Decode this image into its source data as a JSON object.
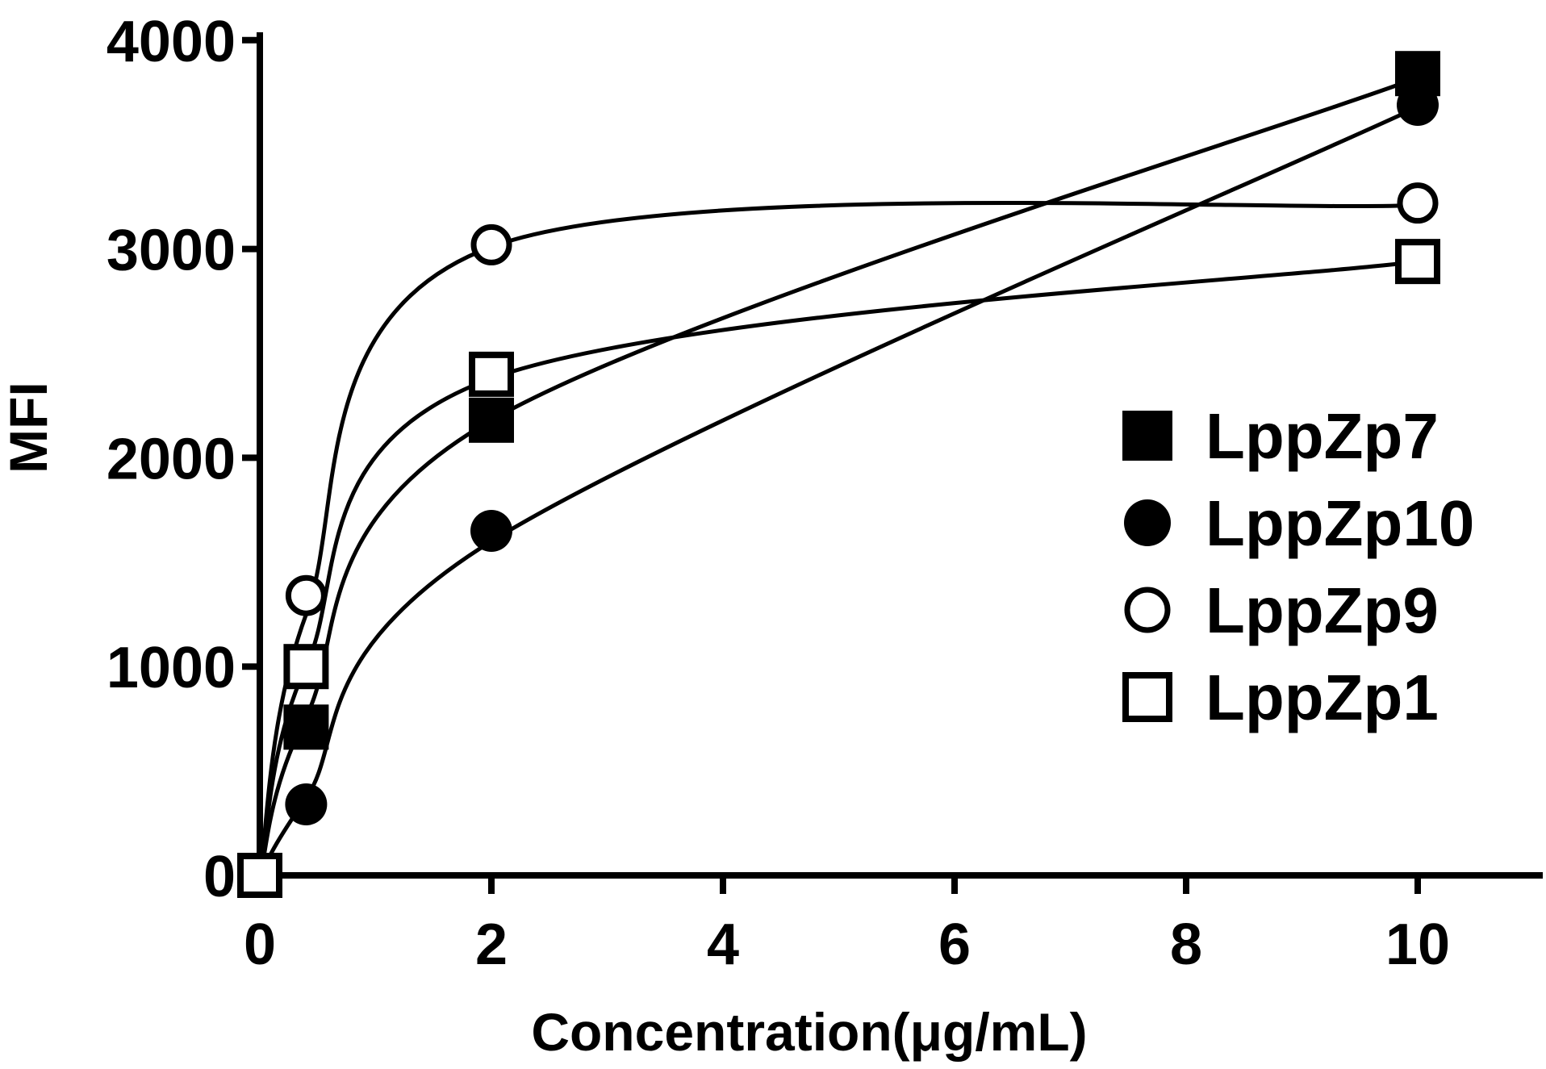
{
  "chart_data": {
    "type": "scatter",
    "title": "",
    "xlabel": "Concentration(μg/mL)",
    "ylabel": "MFI",
    "xlim": [
      0,
      11
    ],
    "ylim": [
      0,
      4000
    ],
    "x_ticks": [
      0,
      2,
      4,
      6,
      8,
      10
    ],
    "y_ticks": [
      0,
      1000,
      2000,
      3000,
      4000
    ],
    "grid": false,
    "legend_position": "right",
    "color": "#000000",
    "series": [
      {
        "name": "LppZp7",
        "marker": "filled-square",
        "x": [
          0,
          0.4,
          2,
          10
        ],
        "y": [
          0,
          710,
          2180,
          3840
        ],
        "curve_y": [
          0,
          760,
          2180,
          3820
        ]
      },
      {
        "name": "LppZp10",
        "marker": "filled-circle",
        "x": [
          0,
          0.4,
          2,
          10
        ],
        "y": [
          0,
          340,
          1650,
          3690
        ],
        "curve_y": [
          0,
          370,
          1600,
          3680
        ]
      },
      {
        "name": "LppZp9",
        "marker": "open-circle",
        "x": [
          0,
          0.4,
          2,
          10
        ],
        "y": [
          0,
          1340,
          3020,
          3220
        ],
        "curve_y": [
          0,
          1250,
          3010,
          3210
        ]
      },
      {
        "name": "LppZp1",
        "marker": "open-square",
        "x": [
          0,
          0.4,
          2,
          10
        ],
        "y": [
          0,
          1000,
          2400,
          2940
        ],
        "curve_y": [
          0,
          1000,
          2380,
          2940
        ]
      }
    ]
  }
}
